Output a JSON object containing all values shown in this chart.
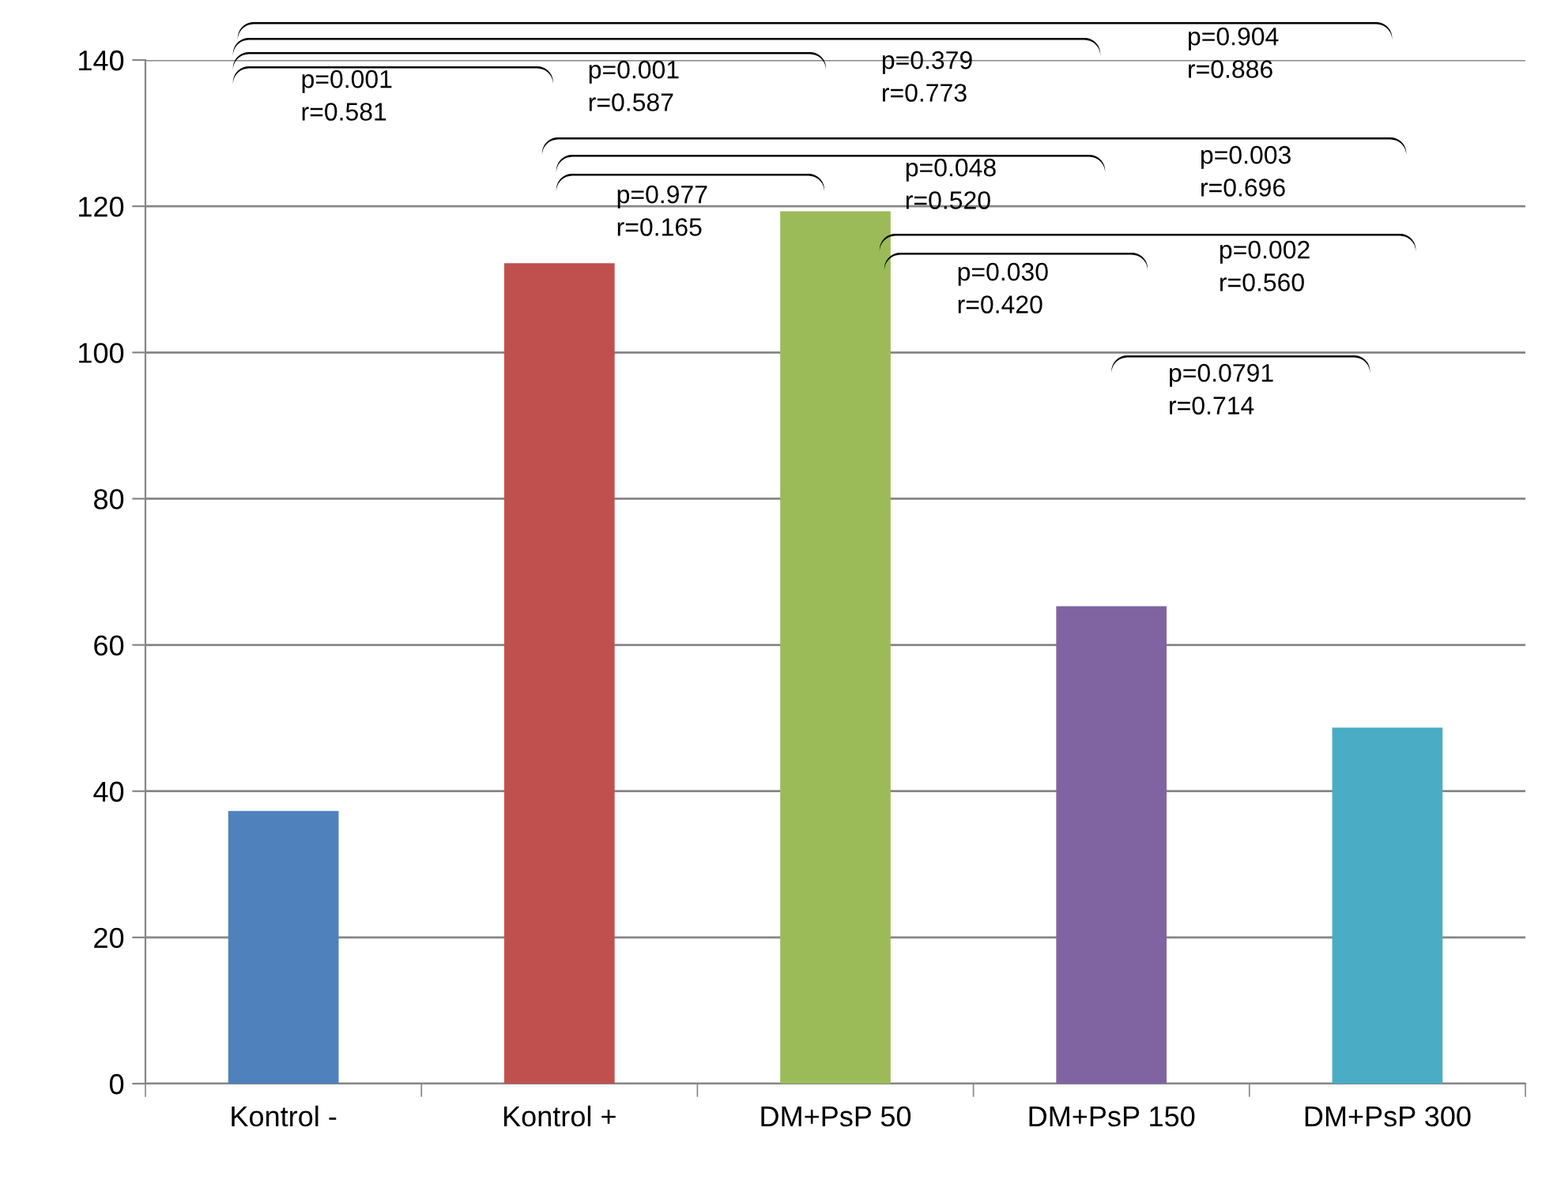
{
  "chart_data": {
    "type": "bar",
    "categories": [
      "Kontrol -",
      "Kontrol +",
      "DM+PsP 50",
      "DM+PsP 150",
      "DM+PsP 300"
    ],
    "values": [
      37.3,
      112.2,
      119.3,
      65.3,
      48.7
    ],
    "colors": [
      "#4f81bd",
      "#c0504d",
      "#9bbb59",
      "#8064a2",
      "#4bacc6"
    ],
    "ylim": [
      0,
      140
    ],
    "yticks": [
      0,
      20,
      40,
      60,
      80,
      100,
      120,
      140
    ],
    "grid": "y",
    "annotations": [
      "p=0.001\nr=0.581",
      "p=0.001\nr=0.587",
      "p=0.379\nr=0.773",
      "p=0.904\nr=0.886",
      "p=0.003\nr=0.696",
      "p=0.977\nr=0.165",
      "p=0.048\nr=0.520",
      "p=0.002\nr=0.560",
      "p=0.030\nr=0.420",
      "p=0.0791\nr=0.714"
    ]
  }
}
